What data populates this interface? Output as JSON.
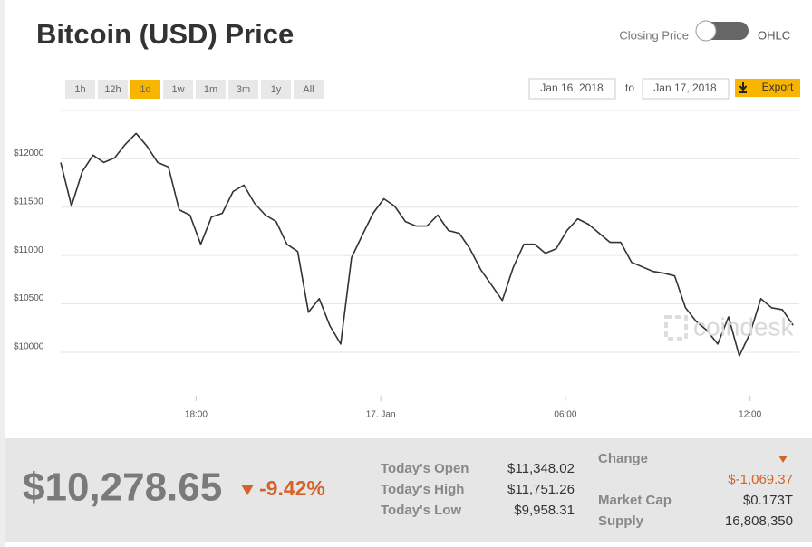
{
  "header": {
    "title": "Bitcoin (USD) Price",
    "toggle_left": "Closing Price",
    "toggle_right": "OHLC"
  },
  "controls": {
    "ranges": [
      "1h",
      "12h",
      "1d",
      "1w",
      "1m",
      "3m",
      "1y",
      "All"
    ],
    "active_range": "1d",
    "date_from": "Jan 16, 2018",
    "date_sep": "to",
    "date_to": "Jan 17, 2018",
    "export": "Export"
  },
  "chart_data": {
    "type": "line",
    "color": "#333333",
    "grid": true,
    "x": [
      13.6,
      13.95,
      14.3,
      14.65,
      15.0,
      15.35,
      15.7,
      16.05,
      16.4,
      16.75,
      17.1,
      17.45,
      17.8,
      18.15,
      18.5,
      18.85,
      19.2,
      19.55,
      19.9,
      20.25,
      20.6,
      20.95,
      21.3,
      21.65,
      22.0,
      22.35,
      22.7,
      23.05,
      23.4,
      23.75,
      24.1,
      24.45,
      24.8,
      25.15,
      25.5,
      25.85,
      26.2,
      26.55,
      26.9,
      27.25,
      27.6,
      27.95,
      28.3,
      28.65,
      29.0,
      29.35,
      29.7,
      30.05,
      30.4,
      30.75,
      31.1,
      31.45,
      31.8,
      32.15,
      32.5,
      32.85,
      33.2,
      33.55,
      33.9,
      34.25,
      34.6,
      34.95,
      35.3,
      35.65,
      36.0,
      36.35,
      36.7,
      37.05,
      37.4
    ],
    "values": [
      11962,
      11512,
      11869,
      12038,
      11962,
      12009,
      12150,
      12263,
      12132,
      11962,
      11916,
      11474,
      11418,
      11117,
      11399,
      11437,
      11662,
      11728,
      11540,
      11418,
      11352,
      11117,
      11042,
      10413,
      10554,
      10272,
      10085,
      10977,
      11211,
      11437,
      11587,
      11512,
      11352,
      11305,
      11305,
      11418,
      11258,
      11230,
      11070,
      10854,
      10695,
      10535,
      10873,
      11117,
      11117,
      11024,
      11070,
      11258,
      11380,
      11324,
      11230,
      11136,
      11136,
      10930,
      10883,
      10836,
      10817,
      10789,
      10460,
      10319,
      10225,
      10085,
      10366,
      9962,
      10197,
      10554,
      10460,
      10441,
      10279
    ],
    "xlim": [
      13.6,
      37.6
    ],
    "xticks": [
      {
        "value": 18,
        "label": "18:00"
      },
      {
        "value": 24,
        "label": "17. Jan"
      },
      {
        "value": 30,
        "label": "06:00"
      },
      {
        "value": 36,
        "label": "12:00"
      }
    ],
    "ylim": [
      9550,
      12500
    ],
    "yticks": [
      {
        "value": 10000,
        "label": "$10000"
      },
      {
        "value": 10500,
        "label": "$10500"
      },
      {
        "value": 11000,
        "label": "$11000"
      },
      {
        "value": 11500,
        "label": "$11500"
      },
      {
        "value": 12000,
        "label": "$12000"
      }
    ]
  },
  "watermark": "coindesk",
  "summary": {
    "price": "$10,278.65",
    "change_pct": "-9.42%",
    "stats": [
      {
        "label": "Today's Open",
        "value": "$11,348.02"
      },
      {
        "label": "Today's High",
        "value": "$11,751.26"
      },
      {
        "label": "Today's Low",
        "value": "$9,958.31"
      }
    ],
    "change_label": "Change",
    "change_value": "$-1,069.37",
    "market_cap_label": "Market Cap",
    "market_cap_value": "$0.173T",
    "supply_label": "Supply",
    "supply_value": "16,808,350"
  }
}
